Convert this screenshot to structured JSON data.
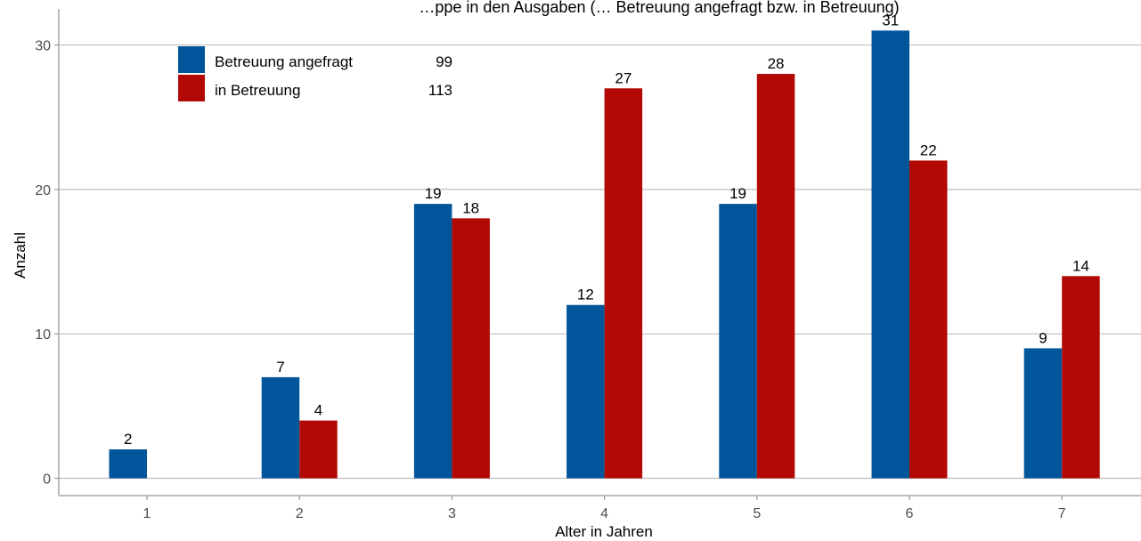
{
  "chart_data": {
    "type": "bar",
    "title": "…ppe in den Ausgaben (… Betreuung angefragt bzw. in Betreuung)",
    "xlabel": "Alter in Jahren",
    "ylabel": "Anzahl",
    "categories": [
      "1",
      "2",
      "3",
      "4",
      "5",
      "6",
      "7"
    ],
    "yticks": [
      "0",
      "10",
      "20",
      "30"
    ],
    "ylim": [
      -1.2,
      32.5
    ],
    "grid": "horizontal major",
    "legend_position": "top-left",
    "series": [
      {
        "name": "Betreuung angefragt",
        "color": "#00559b",
        "total": "99",
        "values": [
          2,
          7,
          19,
          12,
          19,
          31,
          9
        ]
      },
      {
        "name": "in Betreuung",
        "color": "#b30904",
        "total": "113",
        "values": [
          null,
          4,
          18,
          27,
          28,
          22,
          14
        ]
      }
    ]
  }
}
